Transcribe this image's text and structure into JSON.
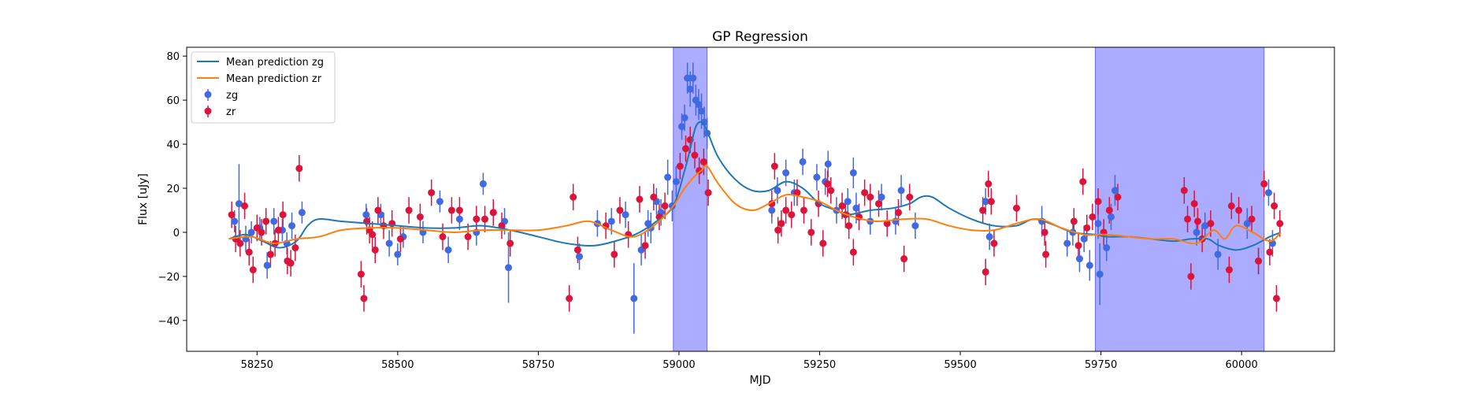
{
  "chart_data": {
    "type": "scatter",
    "title": "GP Regression",
    "xlabel": "MJD",
    "ylabel": "Flux [uJy]",
    "xlim": [
      58125,
      60165
    ],
    "ylim": [
      -54,
      84
    ],
    "xticks": [
      58250,
      58500,
      58750,
      59000,
      59250,
      59500,
      59750,
      60000
    ],
    "yticks": [
      -40,
      -20,
      0,
      20,
      40,
      60,
      80
    ],
    "grid": false,
    "legend_position": "upper-left",
    "shaded_regions": [
      {
        "x0": 58990,
        "x1": 59050,
        "color": "#a6a6ff"
      },
      {
        "x0": 59740,
        "x1": 60040,
        "color": "#a6a6ff"
      }
    ],
    "lines": [
      {
        "name": "Mean prediction zg",
        "color": "#1f77b4",
        "x": [
          58200,
          58230,
          58260,
          58290,
          58320,
          58340,
          58360,
          58400,
          58450,
          58500,
          58550,
          58600,
          58650,
          58700,
          58750,
          58800,
          58850,
          58900,
          58930,
          58960,
          58990,
          59010,
          59020,
          59030,
          59040,
          59050,
          59070,
          59100,
          59130,
          59160,
          59190,
          59220,
          59250,
          59280,
          59300,
          59340,
          59380,
          59410,
          59430,
          59450,
          59480,
          59520,
          59560,
          59600,
          59630,
          59660,
          59700,
          59740,
          59760,
          59800,
          59840,
          59880,
          59910,
          59940,
          59960,
          59990,
          60020,
          60050,
          60070
        ],
        "y": [
          -3,
          -1,
          -4,
          -7,
          -4,
          3,
          6,
          5,
          4,
          3,
          2,
          2,
          3,
          1,
          -2,
          -5,
          -6,
          -3,
          0,
          5,
          12,
          28,
          38,
          48,
          50,
          46,
          34,
          24,
          19,
          19,
          23,
          20,
          13,
          10,
          8,
          10,
          11,
          13,
          16,
          16,
          11,
          6,
          3,
          3,
          6,
          4,
          0,
          -1,
          -2,
          -2,
          -3,
          -4,
          -3,
          -3,
          -6,
          -8,
          -6,
          -2,
          0
        ]
      },
      {
        "name": "Mean prediction zr",
        "color": "#ff7f0e",
        "x": [
          58200,
          58240,
          58280,
          58320,
          58360,
          58400,
          58450,
          58500,
          58550,
          58600,
          58650,
          58700,
          58750,
          58800,
          58840,
          58880,
          58920,
          58960,
          58990,
          59010,
          59030,
          59040,
          59050,
          59070,
          59100,
          59130,
          59160,
          59190,
          59220,
          59250,
          59280,
          59310,
          59350,
          59400,
          59440,
          59480,
          59520,
          59560,
          59600,
          59640,
          59680,
          59720,
          59760,
          59800,
          59840,
          59880,
          59920,
          59950,
          59970,
          59990,
          60020,
          60050,
          60070
        ],
        "y": [
          -3,
          -2,
          -5,
          -3,
          -2,
          1,
          2,
          2,
          1,
          0,
          1,
          1,
          1,
          3,
          5,
          1,
          -2,
          4,
          12,
          20,
          26,
          28,
          30,
          22,
          13,
          10,
          13,
          17,
          16,
          14,
          10,
          7,
          5,
          6,
          6,
          3,
          1,
          1,
          4,
          6,
          2,
          -1,
          -1,
          -2,
          -3,
          -3,
          -5,
          1,
          -3,
          3,
          0,
          -4,
          0
        ]
      }
    ],
    "series": [
      {
        "name": "zg",
        "color": "#4169e1",
        "x": [
          58210,
          58218,
          58230,
          58240,
          58255,
          58268,
          58280,
          58295,
          58303,
          58312,
          58330,
          58444,
          58470,
          58485,
          58500,
          58510,
          58545,
          58575,
          58590,
          58610,
          58640,
          58652,
          58670,
          58690,
          58697,
          58823,
          58855,
          58880,
          58905,
          58920,
          58933,
          58945,
          58950,
          58960,
          58968,
          58980,
          58988,
          58995,
          59005,
          59010,
          59015,
          59020,
          59025,
          59030,
          59035,
          59040,
          59045,
          59050,
          59165,
          59175,
          59190,
          59205,
          59220,
          59245,
          59260,
          59265,
          59280,
          59300,
          59310,
          59315,
          59340,
          59360,
          59385,
          59395,
          59420,
          59545,
          59552,
          59645,
          59690,
          59700,
          59712,
          59720,
          59730,
          59745,
          59748,
          59760,
          59768,
          59775,
          59920,
          59935,
          59958,
          60010,
          60030,
          60048,
          60055
        ],
        "y": [
          5,
          13,
          -3,
          0,
          2,
          -15,
          5,
          1,
          -5,
          3,
          9,
          8,
          8,
          -5,
          -10,
          -2,
          0,
          14,
          -8,
          6,
          0,
          22,
          9,
          5,
          -16,
          -11,
          4,
          5,
          8,
          -30,
          -8,
          4,
          2,
          14,
          9,
          25,
          12,
          23,
          48,
          52,
          70,
          65,
          70,
          60,
          58,
          55,
          50,
          45,
          10,
          19,
          27,
          18,
          32,
          25,
          23,
          31,
          10,
          14,
          27,
          11,
          5,
          16,
          5,
          19,
          3,
          14,
          -2,
          5,
          -5,
          0,
          -12,
          -3,
          -15,
          4,
          -19,
          -7,
          7,
          19,
          0,
          3,
          -10,
          4,
          -13,
          18,
          -5
        ],
        "err": [
          5,
          18,
          6,
          5,
          5,
          6,
          6,
          5,
          5,
          6,
          5,
          5,
          5,
          6,
          5,
          5,
          5,
          5,
          6,
          5,
          6,
          5,
          6,
          6,
          16,
          6,
          6,
          6,
          6,
          16,
          7,
          6,
          7,
          6,
          6,
          8,
          7,
          7,
          6,
          6,
          7,
          8,
          7,
          7,
          7,
          8,
          7,
          7,
          6,
          6,
          6,
          6,
          6,
          6,
          6,
          6,
          6,
          6,
          7,
          7,
          6,
          6,
          6,
          7,
          6,
          6,
          6,
          7,
          6,
          6,
          6,
          6,
          7,
          7,
          14,
          6,
          6,
          7,
          6,
          6,
          7,
          7,
          6,
          6,
          6
        ]
      },
      {
        "name": "zr",
        "color": "#dc143c",
        "x": [
          58205,
          58212,
          58220,
          58228,
          58236,
          58243,
          58250,
          58258,
          58266,
          58274,
          58282,
          58288,
          58296,
          58304,
          58310,
          58318,
          58325,
          58435,
          58440,
          58445,
          58450,
          58455,
          58460,
          58465,
          58475,
          58490,
          58505,
          58520,
          58540,
          58560,
          58580,
          58596,
          58610,
          58625,
          58640,
          58655,
          58670,
          58685,
          58700,
          58805,
          58812,
          58820,
          58870,
          58885,
          58895,
          58910,
          58930,
          58940,
          58955,
          58965,
          58975,
          59002,
          59012,
          59020,
          59028,
          59036,
          59044,
          59052,
          59165,
          59170,
          59176,
          59182,
          59190,
          59200,
          59210,
          59222,
          59235,
          59248,
          59256,
          59264,
          59270,
          59290,
          59296,
          59302,
          59310,
          59320,
          59330,
          59340,
          59355,
          59370,
          59390,
          59400,
          59410,
          59540,
          59545,
          59550,
          59555,
          59560,
          59600,
          59650,
          59652,
          59702,
          59710,
          59718,
          59725,
          59735,
          59745,
          59755,
          59765,
          59780,
          59898,
          59904,
          59910,
          59916,
          59922,
          59930,
          59945,
          59978,
          59982,
          59995,
          60018,
          60030,
          60040,
          60050,
          60058,
          60062,
          60068
        ],
        "y": [
          8,
          -3,
          -5,
          12,
          -9,
          -17,
          2,
          0,
          5,
          -10,
          -5,
          1,
          8,
          -13,
          -14,
          -7,
          29,
          -19,
          -30,
          5,
          1,
          -1,
          -8,
          10,
          3,
          4,
          -3,
          10,
          7,
          18,
          -2,
          10,
          10,
          -2,
          6,
          6,
          9,
          3,
          -5,
          -30,
          16,
          -8,
          3,
          -10,
          10,
          -1,
          15,
          -6,
          16,
          7,
          12,
          30,
          38,
          42,
          35,
          28,
          32,
          18,
          13,
          30,
          1,
          4,
          10,
          8,
          18,
          10,
          0,
          13,
          -5,
          22,
          19,
          12,
          8,
          3,
          -9,
          7,
          18,
          16,
          13,
          4,
          9,
          -12,
          16,
          10,
          -18,
          22,
          14,
          -5,
          11,
          0,
          -10,
          5,
          -6,
          23,
          2,
          7,
          14,
          0,
          10,
          16,
          19,
          6,
          -20,
          13,
          5,
          -3,
          4,
          -17,
          12,
          10,
          6,
          -13,
          22,
          -9,
          12,
          -30,
          4
        ]
      }
    ]
  }
}
